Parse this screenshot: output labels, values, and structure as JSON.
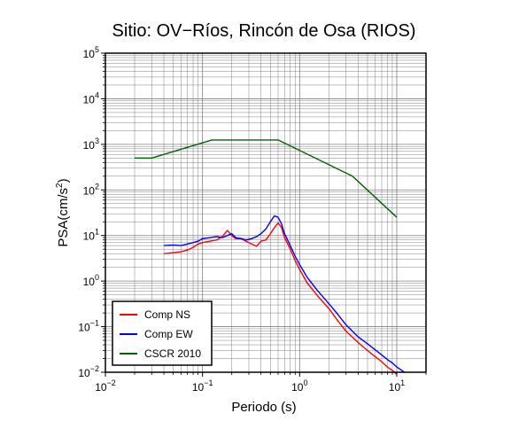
{
  "chart_data": {
    "type": "line",
    "title": "Sitio: OV−Ríos, Rincón de Osa (RIOS)",
    "xlabel": "Periodo (s)",
    "ylabel": "PSA(cm/s2)",
    "xscale": "log",
    "yscale": "log",
    "xlim": [
      0.01,
      20
    ],
    "ylim": [
      0.01,
      100000
    ],
    "grid": true,
    "legend_position": "bottom-left",
    "x_ticks": [
      {
        "base": "10",
        "exp": "−2",
        "value": 0.01
      },
      {
        "base": "10",
        "exp": "−1",
        "value": 0.1
      },
      {
        "base": "10",
        "exp": "0",
        "value": 1
      },
      {
        "base": "10",
        "exp": "1",
        "value": 10
      }
    ],
    "y_ticks": [
      {
        "base": "10",
        "exp": "−2",
        "value": 0.01
      },
      {
        "base": "10",
        "exp": "−1",
        "value": 0.1
      },
      {
        "base": "10",
        "exp": "0",
        "value": 1
      },
      {
        "base": "10",
        "exp": "1",
        "value": 10
      },
      {
        "base": "10",
        "exp": "2",
        "value": 100
      },
      {
        "base": "10",
        "exp": "3",
        "value": 1000
      },
      {
        "base": "10",
        "exp": "4",
        "value": 10000
      },
      {
        "base": "10",
        "exp": "5",
        "value": 100000
      }
    ],
    "series": [
      {
        "name": "Comp NS",
        "color": "#ff0000",
        "x": [
          0.04,
          0.05,
          0.06,
          0.07,
          0.08,
          0.09,
          0.1,
          0.12,
          0.14,
          0.16,
          0.18,
          0.2,
          0.22,
          0.25,
          0.28,
          0.32,
          0.36,
          0.4,
          0.45,
          0.5,
          0.55,
          0.6,
          0.65,
          0.7,
          0.8,
          0.9,
          1.0,
          1.2,
          1.5,
          2.0,
          2.5,
          3.0,
          4.0,
          5.0,
          6.0,
          7.0,
          8.0,
          9.0,
          10.0
        ],
        "y": [
          4.0,
          4.2,
          4.4,
          4.8,
          5.5,
          6.5,
          7.0,
          7.5,
          8.0,
          9.5,
          13.0,
          10.0,
          8.5,
          8.5,
          7.5,
          6.5,
          5.8,
          7.5,
          8.0,
          11.0,
          15.0,
          19.0,
          15.0,
          9.0,
          5.0,
          2.8,
          1.8,
          0.9,
          0.5,
          0.25,
          0.13,
          0.08,
          0.045,
          0.03,
          0.022,
          0.017,
          0.013,
          0.011,
          0.009
        ]
      },
      {
        "name": "Comp EW",
        "color": "#0000ff",
        "x": [
          0.04,
          0.05,
          0.06,
          0.07,
          0.08,
          0.09,
          0.1,
          0.12,
          0.14,
          0.16,
          0.18,
          0.2,
          0.22,
          0.25,
          0.28,
          0.32,
          0.36,
          0.4,
          0.45,
          0.5,
          0.55,
          0.6,
          0.65,
          0.7,
          0.8,
          0.9,
          1.0,
          1.2,
          1.5,
          2.0,
          2.5,
          3.0,
          4.0,
          5.0,
          6.0,
          7.0,
          8.0,
          9.0,
          10.0,
          12.0
        ],
        "y": [
          6.0,
          6.2,
          6.0,
          6.5,
          7.0,
          7.5,
          8.5,
          9.0,
          9.5,
          9.0,
          10.0,
          11.0,
          9.0,
          8.5,
          8.0,
          8.5,
          9.5,
          11.0,
          14.0,
          20.0,
          27.0,
          25.0,
          18.0,
          11.0,
          6.0,
          3.5,
          2.3,
          1.2,
          0.65,
          0.32,
          0.18,
          0.11,
          0.06,
          0.042,
          0.031,
          0.024,
          0.019,
          0.016,
          0.013,
          0.01
        ]
      },
      {
        "name": "CSCR 2010",
        "color": "#006400",
        "x": [
          0.02,
          0.03,
          0.125,
          0.6,
          3.5,
          10.0
        ],
        "y": [
          500,
          500,
          1250,
          1250,
          200,
          25
        ]
      }
    ]
  }
}
